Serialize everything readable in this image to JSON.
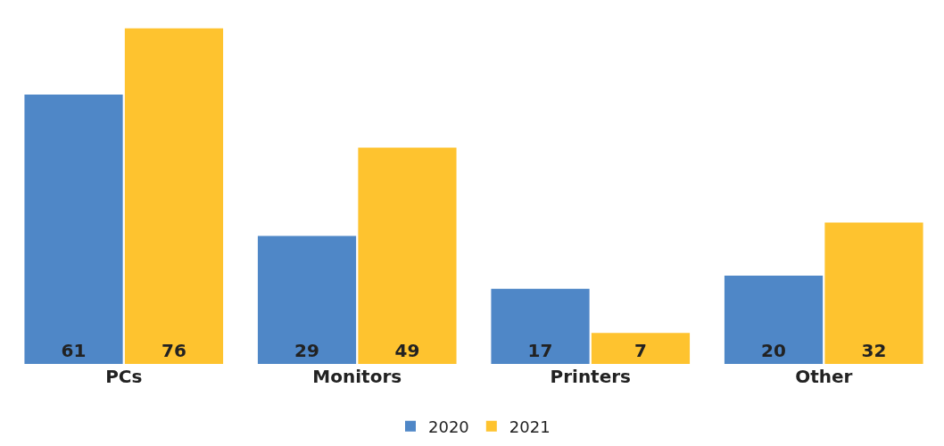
{
  "chart_data": {
    "type": "bar",
    "categories": [
      "PCs",
      "Monitors",
      "Printers",
      "Other"
    ],
    "series": [
      {
        "name": "2020",
        "color": "#4f87c7",
        "values": [
          61,
          29,
          17,
          20
        ]
      },
      {
        "name": "2021",
        "color": "#fec32f",
        "values": [
          76,
          49,
          7,
          32
        ]
      }
    ],
    "data_labels": true,
    "legend": "bottom"
  }
}
